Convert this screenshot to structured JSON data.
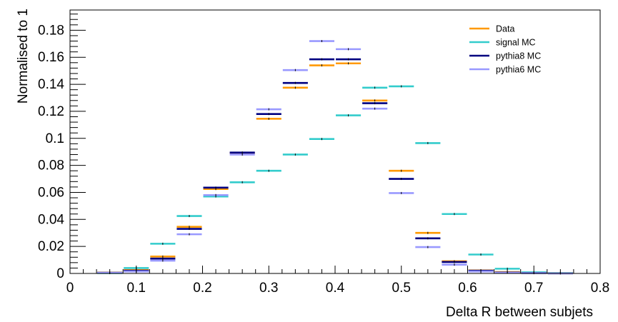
{
  "chart_data": {
    "type": "histogram",
    "xlabel": "Delta R between subjets",
    "ylabel": "Normalised to 1",
    "xlim": [
      0,
      0.8
    ],
    "ylim": [
      0,
      0.195
    ],
    "x_ticks": [
      "0",
      "0.1",
      "0.2",
      "0.3",
      "0.4",
      "0.5",
      "0.6",
      "0.7",
      "0.8"
    ],
    "y_ticks": [
      "0",
      "0.02",
      "0.04",
      "0.06",
      "0.08",
      "0.1",
      "0.12",
      "0.14",
      "0.16",
      "0.18"
    ],
    "grid": false,
    "legend_position": "top-right",
    "bin_edges": [
      0.04,
      0.08,
      0.12,
      0.16,
      0.2,
      0.24,
      0.28,
      0.32,
      0.36,
      0.4,
      0.44,
      0.48,
      0.52,
      0.56,
      0.6,
      0.64,
      0.68,
      0.72,
      0.76
    ],
    "series": [
      {
        "name": "Data",
        "color": "#ff9900",
        "values": [
          0.0006,
          0.0025,
          0.0125,
          0.0345,
          0.0625,
          0.089,
          0.1145,
          0.1375,
          0.154,
          0.1555,
          0.128,
          0.076,
          0.03,
          0.009,
          0.0022,
          0.001,
          0.0006,
          0.0004
        ]
      },
      {
        "name": "signal MC",
        "color": "#33cccc",
        "values": [
          0.0003,
          0.004,
          0.022,
          0.0425,
          0.057,
          0.0675,
          0.076,
          0.088,
          0.0995,
          0.117,
          0.1375,
          0.1385,
          0.0965,
          0.044,
          0.014,
          0.0035,
          0.0008,
          0.0003
        ]
      },
      {
        "name": "pythia8 MC",
        "color": "#000080",
        "values": [
          0.0005,
          0.002,
          0.011,
          0.033,
          0.0635,
          0.0895,
          0.118,
          0.141,
          0.1585,
          0.1585,
          0.126,
          0.07,
          0.026,
          0.0085,
          0.002,
          0.0007,
          0.0003,
          0.0001
        ]
      },
      {
        "name": "pythia6 MC",
        "color": "#9999ff",
        "values": [
          0.0004,
          0.0015,
          0.0095,
          0.029,
          0.058,
          0.088,
          0.1215,
          0.1505,
          0.172,
          0.166,
          0.122,
          0.0595,
          0.0195,
          0.0065,
          0.0015,
          0.0005,
          0.0002,
          0.0001
        ]
      }
    ]
  }
}
